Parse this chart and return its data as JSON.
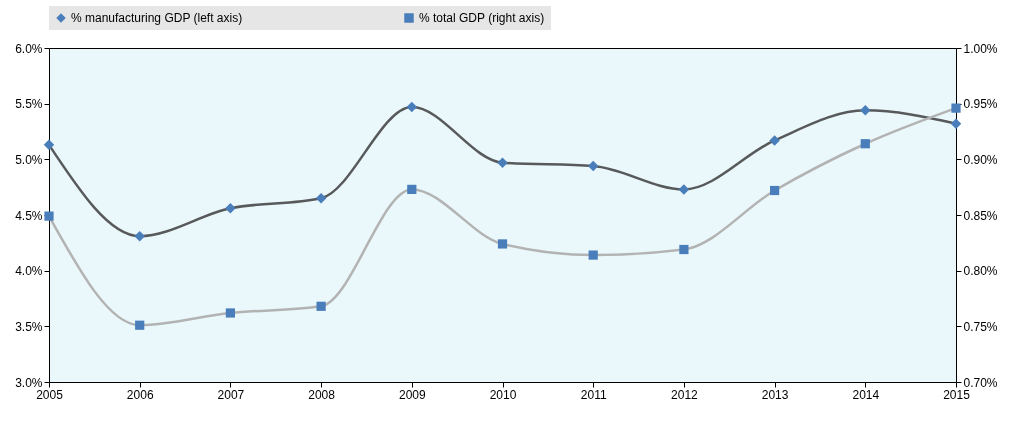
{
  "chart_data": {
    "type": "line",
    "x": [
      2005,
      2006,
      2007,
      2008,
      2009,
      2010,
      2011,
      2012,
      2013,
      2014,
      2015
    ],
    "series": [
      {
        "color": "#58595b",
        "marker": "none",
        "axis": "y",
        "values": [
          5.13,
          4.31,
          4.56,
          4.65,
          5.47,
          4.97,
          4.94,
          4.73,
          5.17,
          5.44,
          5.32
        ]
      },
      {
        "color": "#b3b3b3",
        "marker": "none",
        "axis": "y2",
        "values": [
          0.849,
          0.751,
          0.762,
          0.768,
          0.873,
          0.824,
          0.814,
          0.819,
          0.872,
          0.914,
          0.946
        ]
      },
      {
        "type": "scatter",
        "name": "% manufacturing GDP (left axis)",
        "color": "#4a7ebb",
        "marker": "diamond",
        "axis": "y",
        "values": [
          5.13,
          4.31,
          4.56,
          4.65,
          5.47,
          4.97,
          4.94,
          4.73,
          5.17,
          5.44,
          5.32
        ]
      },
      {
        "type": "scatter",
        "name": "% total GDP (right axis)",
        "color": "#4a7ebb",
        "marker": "square",
        "axis": "y2",
        "values": [
          0.849,
          0.751,
          0.762,
          0.768,
          0.873,
          0.824,
          0.814,
          0.819,
          0.872,
          0.914,
          0.946
        ]
      }
    ],
    "xlim": [
      2005,
      2015
    ],
    "xticks": [
      2005,
      2006,
      2007,
      2008,
      2009,
      2010,
      2011,
      2012,
      2013,
      2014,
      2015
    ],
    "ylim": [
      3,
      6
    ],
    "yticks": [
      {
        "value": 3,
        "label": "3.0%"
      },
      {
        "value": 3.5,
        "label": "3.5%"
      },
      {
        "value": 4,
        "label": "4.0%"
      },
      {
        "value": 4.5,
        "label": "4.5%"
      },
      {
        "value": 5,
        "label": "5.0%"
      },
      {
        "value": 5.5,
        "label": "5.5%"
      },
      {
        "value": 6,
        "label": "6.0%"
      }
    ],
    "y2lim": [
      0.7,
      1.0
    ],
    "y2ticks": [
      {
        "value": 0.7,
        "label": "0.70%"
      },
      {
        "value": 0.75,
        "label": "0.75%"
      },
      {
        "value": 0.8,
        "label": "0.80%"
      },
      {
        "value": 0.85,
        "label": "0.85%"
      },
      {
        "value": 0.9,
        "label": "0.90%"
      },
      {
        "value": 0.95,
        "label": "0.95%"
      },
      {
        "value": 1.0,
        "label": "1.00%"
      }
    ],
    "legend": "top",
    "grid": false
  }
}
